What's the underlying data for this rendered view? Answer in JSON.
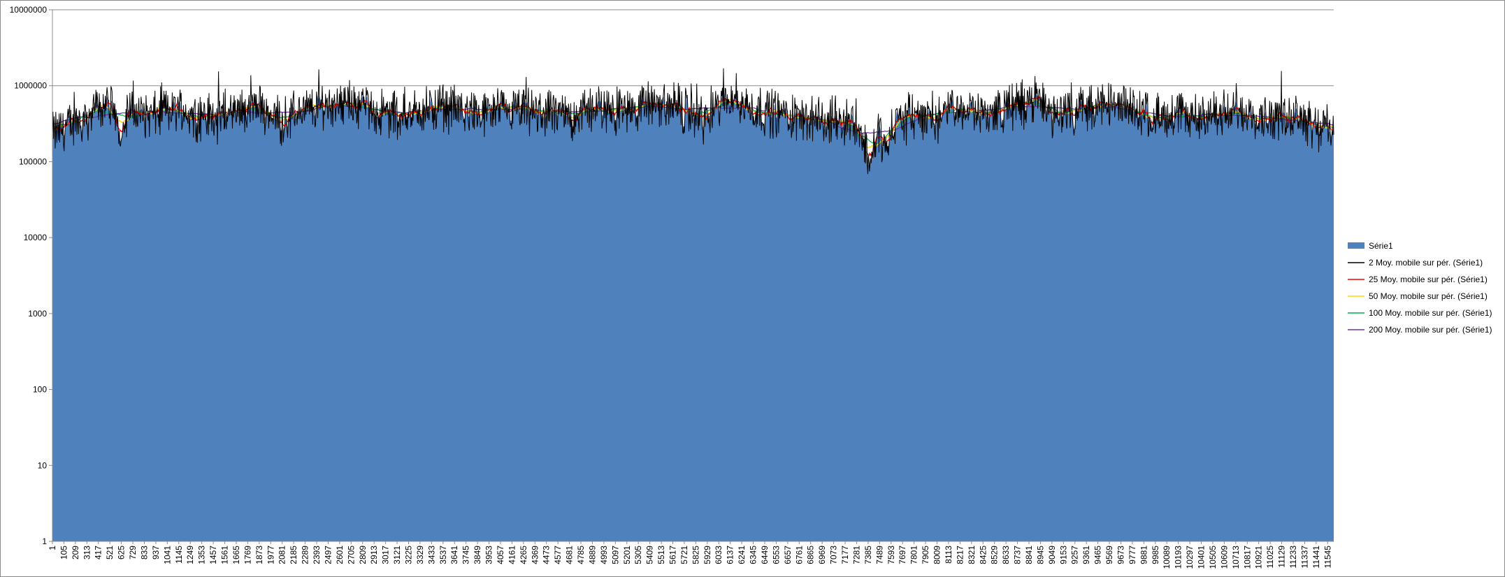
{
  "chart_data": {
    "type": "area",
    "yscale": "log",
    "ylim": [
      1,
      10000000
    ],
    "xlim": [
      1,
      11600
    ],
    "title": "",
    "xlabel": "",
    "ylabel": "",
    "grid": "horizontal",
    "legend_position": "right",
    "y_tick_labels": [
      "1",
      "10",
      "100",
      "1000",
      "10000",
      "100000",
      "1000000",
      "10000000"
    ],
    "x_tick_labels": [
      "1",
      "105",
      "209",
      "313",
      "417",
      "521",
      "625",
      "729",
      "833",
      "937",
      "1041",
      "1145",
      "1249",
      "1353",
      "1457",
      "1561",
      "1665",
      "1769",
      "1873",
      "1977",
      "2081",
      "2185",
      "2289",
      "2393",
      "2497",
      "2601",
      "2705",
      "2809",
      "2913",
      "3017",
      "3121",
      "3225",
      "3329",
      "3433",
      "3537",
      "3641",
      "3745",
      "3849",
      "3953",
      "4057",
      "4161",
      "4265",
      "4369",
      "4473",
      "4577",
      "4681",
      "4785",
      "4889",
      "4993",
      "5097",
      "5201",
      "5305",
      "5409",
      "5513",
      "5617",
      "5721",
      "5825",
      "5929",
      "6033",
      "6137",
      "6241",
      "6345",
      "6449",
      "6553",
      "6657",
      "6761",
      "6865",
      "6969",
      "7073",
      "7177",
      "7281",
      "7385",
      "7489",
      "7593",
      "7697",
      "7801",
      "7905",
      "8009",
      "8113",
      "8217",
      "8321",
      "8425",
      "8529",
      "8633",
      "8737",
      "8841",
      "8945",
      "9049",
      "9153",
      "9257",
      "9361",
      "9465",
      "9569",
      "9673",
      "9777",
      "9881",
      "9985",
      "10089",
      "10193",
      "10297",
      "10401",
      "10505",
      "10609",
      "10713",
      "10817",
      "10921",
      "11025",
      "11129",
      "11233",
      "11337",
      "11441",
      "11545"
    ],
    "profile_x": [
      1,
      300,
      500,
      600,
      700,
      900,
      1100,
      1300,
      1500,
      1700,
      1900,
      2100,
      2200,
      2400,
      2600,
      2800,
      3000,
      3300,
      3600,
      3900,
      4200,
      4500,
      4700,
      4900,
      5100,
      5400,
      5700,
      5900,
      6000,
      6150,
      6250,
      6400,
      6700,
      7000,
      7250,
      7350,
      7400,
      7480,
      7550,
      7650,
      7800,
      8000,
      8200,
      8500,
      8800,
      8900,
      9050,
      9300,
      9600,
      9800,
      10100,
      10400,
      10700,
      11000,
      11300,
      11450,
      11600
    ],
    "profile_y": [
      230000,
      380000,
      620000,
      260000,
      450000,
      400000,
      520000,
      400000,
      380000,
      480000,
      500000,
      350000,
      450000,
      500000,
      650000,
      550000,
      420000,
      450000,
      520000,
      400000,
      450000,
      420000,
      400000,
      500000,
      480000,
      550000,
      480000,
      360000,
      500000,
      800000,
      550000,
      480000,
      400000,
      330000,
      350000,
      200000,
      100000,
      240000,
      150000,
      350000,
      400000,
      380000,
      500000,
      430000,
      600000,
      650000,
      420000,
      500000,
      550000,
      480000,
      380000,
      400000,
      420000,
      400000,
      430000,
      300000,
      260000
    ],
    "series": [
      {
        "name": "Série1",
        "color": "#4f81bd",
        "kind": "area"
      },
      {
        "name": "2 Moy. mobile sur pér. (Série1)",
        "color": "#000000",
        "kind": "line"
      },
      {
        "name": "25 Moy. mobile sur pér. (Série1)",
        "color": "#ff0000",
        "kind": "line"
      },
      {
        "name": "50 Moy. mobile sur pér. (Série1)",
        "color": "#ffd700",
        "kind": "line"
      },
      {
        "name": "100 Moy. mobile sur pér. (Série1)",
        "color": "#00b050",
        "kind": "line"
      },
      {
        "name": "200 Moy. mobile sur pér. (Série1)",
        "color": "#7030a0",
        "kind": "line"
      }
    ]
  }
}
